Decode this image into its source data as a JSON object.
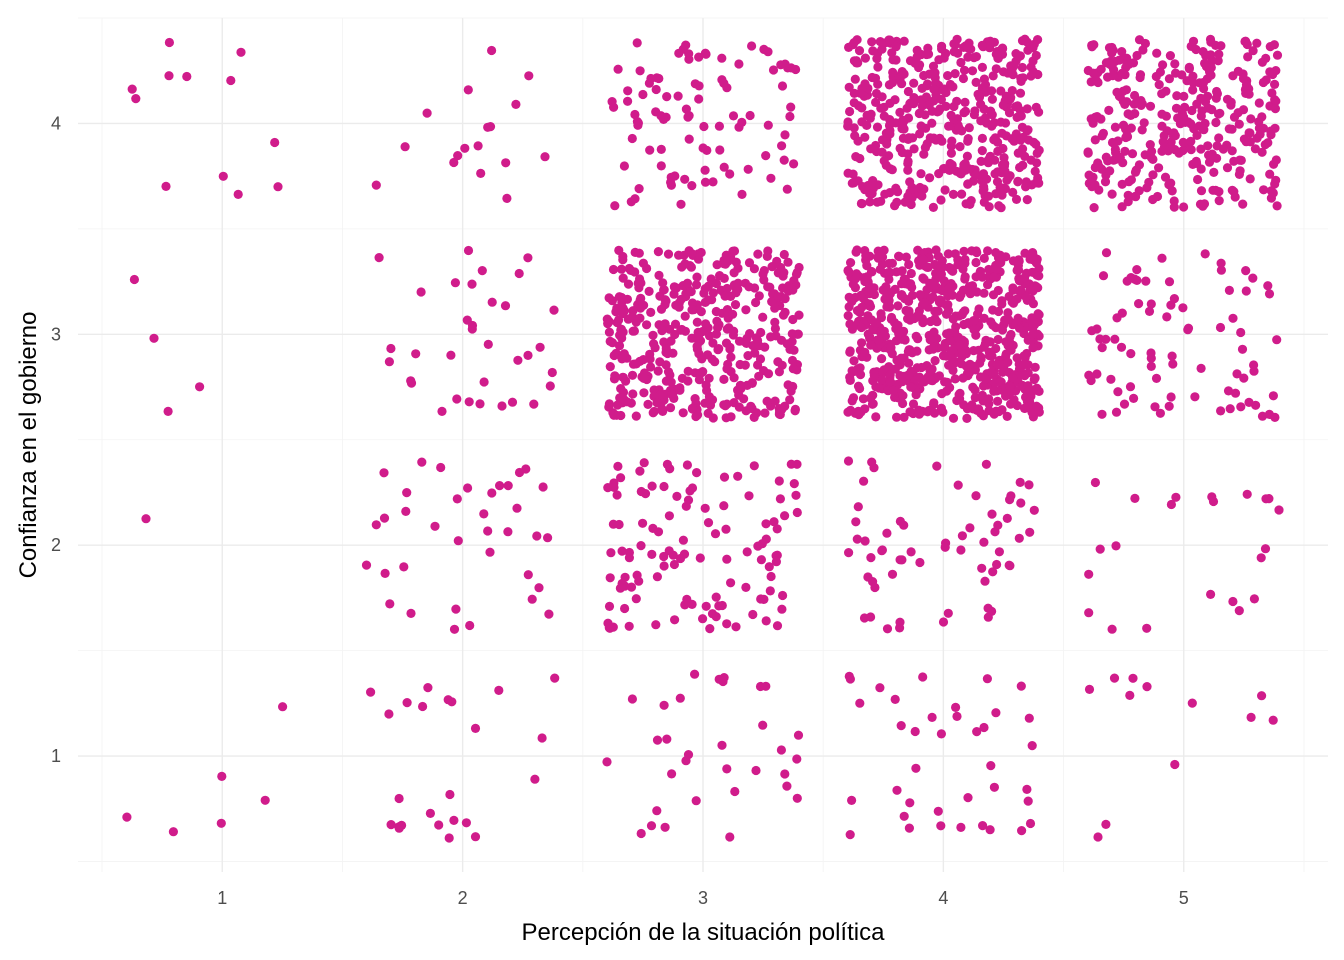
{
  "chart_data": {
    "type": "scatter",
    "title": "",
    "xlabel": "Percepción de la situación política",
    "ylabel": "Confianza en el gobierno",
    "xlim": [
      0.4,
      5.6
    ],
    "ylim": [
      0.45,
      4.5
    ],
    "x_ticks": [
      1,
      2,
      3,
      4,
      5
    ],
    "x_tick_labels": [
      "1",
      "2",
      "3",
      "4",
      "5"
    ],
    "y_ticks": [
      1,
      2,
      3,
      4
    ],
    "y_tick_labels": [
      "1",
      "2",
      "3",
      "4"
    ],
    "grid": true,
    "point_color": "#D01C8B",
    "jitter": 0.4,
    "cells": [
      {
        "x": 1,
        "y": 1,
        "n": 6
      },
      {
        "x": 1,
        "y": 2,
        "n": 1
      },
      {
        "x": 1,
        "y": 3,
        "n": 4
      },
      {
        "x": 1,
        "y": 4,
        "n": 12
      },
      {
        "x": 2,
        "y": 1,
        "n": 24
      },
      {
        "x": 2,
        "y": 2,
        "n": 36
      },
      {
        "x": 2,
        "y": 3,
        "n": 34
      },
      {
        "x": 2,
        "y": 4,
        "n": 17
      },
      {
        "x": 3,
        "y": 1,
        "n": 32
      },
      {
        "x": 3,
        "y": 2,
        "n": 115
      },
      {
        "x": 3,
        "y": 3,
        "n": 420
      },
      {
        "x": 3,
        "y": 4,
        "n": 95
      },
      {
        "x": 4,
        "y": 1,
        "n": 38
      },
      {
        "x": 4,
        "y": 2,
        "n": 62
      },
      {
        "x": 4,
        "y": 3,
        "n": 700
      },
      {
        "x": 4,
        "y": 4,
        "n": 460
      },
      {
        "x": 5,
        "y": 1,
        "n": 12
      },
      {
        "x": 5,
        "y": 2,
        "n": 22
      },
      {
        "x": 5,
        "y": 3,
        "n": 80
      },
      {
        "x": 5,
        "y": 4,
        "n": 340
      }
    ]
  }
}
